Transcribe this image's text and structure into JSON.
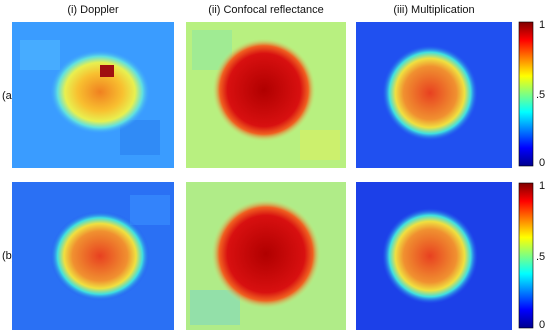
{
  "figure": {
    "columns": [
      "(i) Doppler",
      "(ii) Confocal reflectance",
      "(iii) Multiplication"
    ],
    "rows": [
      "(a)",
      "(b)"
    ],
    "colorbar_ticks": [
      "1",
      ".5",
      "0"
    ]
  }
}
